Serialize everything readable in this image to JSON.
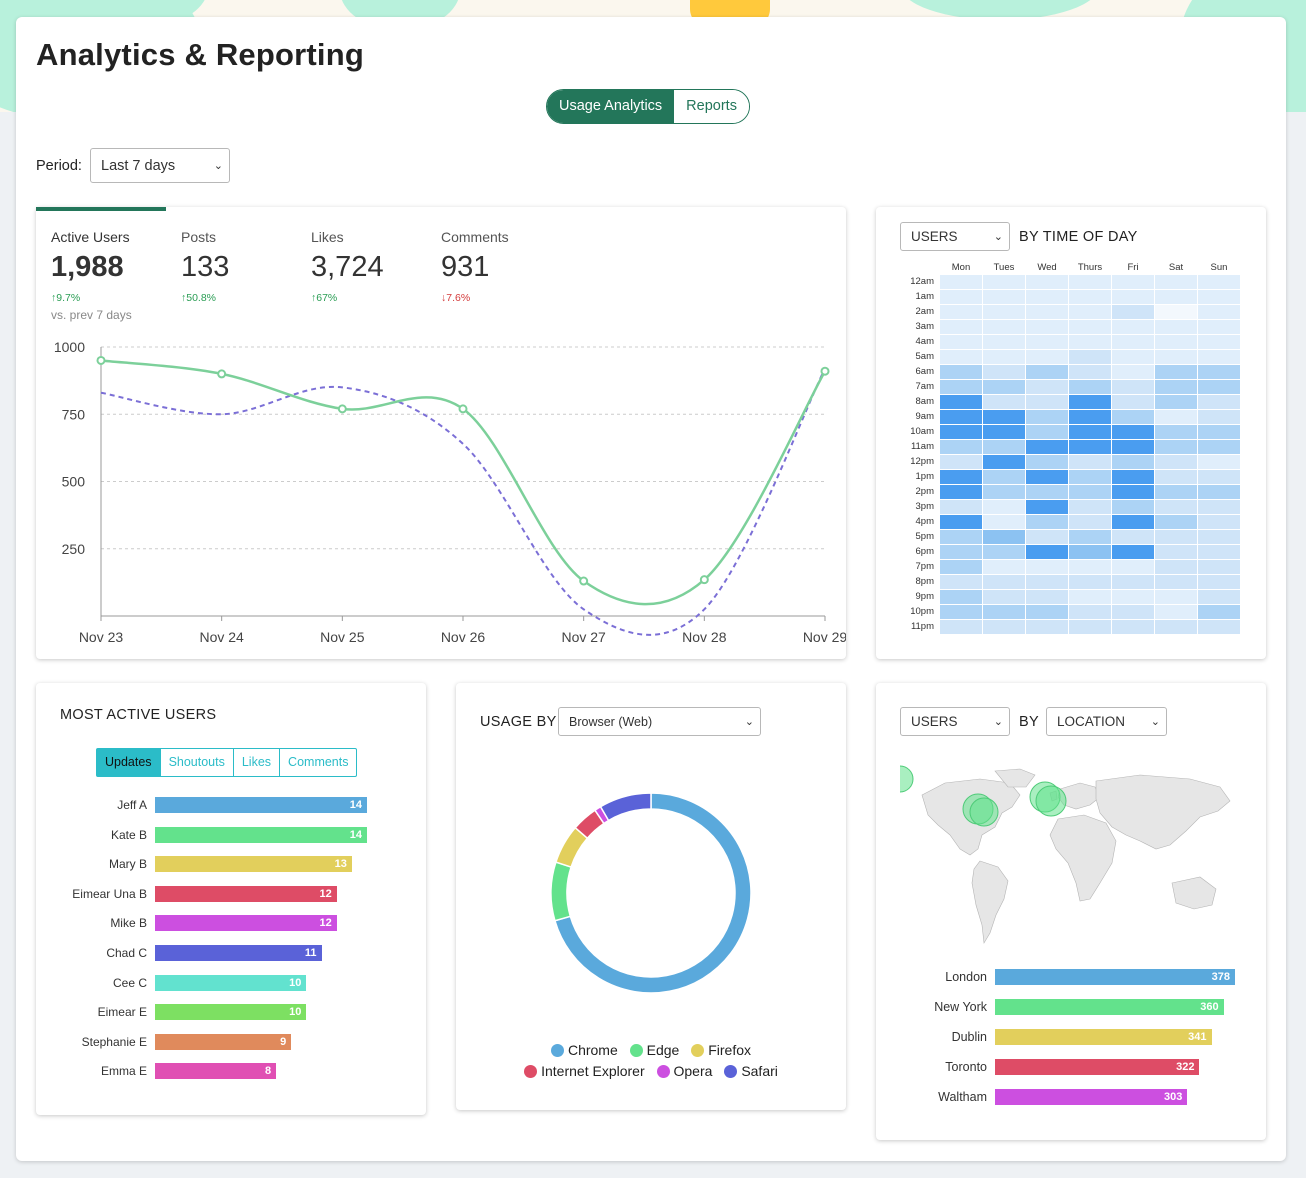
{
  "page": {
    "title": "Analytics & Reporting",
    "tabs": [
      {
        "label": "Usage Analytics",
        "active": true
      },
      {
        "label": "Reports",
        "active": false
      }
    ],
    "period_label": "Period:",
    "period_value": "Last 7 days"
  },
  "colors": {
    "brand_green": "#23765a",
    "teal": "#2bbcc8",
    "up": "#2a9d54",
    "down": "#d43b3b"
  },
  "stats": [
    {
      "label": "Active Users",
      "value": "1,988",
      "change": "↑9.7%",
      "direction": "up",
      "note": "vs. prev 7 days",
      "selected": true
    },
    {
      "label": "Posts",
      "value": "133",
      "change": "↑50.8%",
      "direction": "up"
    },
    {
      "label": "Likes",
      "value": "3,724",
      "change": "↑67%",
      "direction": "up"
    },
    {
      "label": "Comments",
      "value": "931",
      "change": "↓7.6%",
      "direction": "down"
    }
  ],
  "chart_data": [
    {
      "type": "line",
      "x": [
        "Nov 23",
        "Nov 24",
        "Nov 25",
        "Nov 26",
        "Nov 27",
        "Nov 28",
        "Nov 29"
      ],
      "yticks": [
        1000,
        750,
        500,
        250
      ],
      "ylim": [
        0,
        1000
      ],
      "series": [
        {
          "style": "solid",
          "color": "#7cd09a",
          "values": [
            950,
            900,
            770,
            770,
            130,
            135,
            910
          ]
        },
        {
          "style": "dashed",
          "color": "#7b6fd6",
          "values": [
            830,
            750,
            850,
            640,
            25,
            25,
            920
          ]
        }
      ]
    },
    {
      "type": "heatmap",
      "title": "BY TIME OF DAY",
      "columns": [
        "Mon",
        "Tues",
        "Wed",
        "Thurs",
        "Fri",
        "Sat",
        "Sun"
      ],
      "rows": [
        "12am",
        "1am",
        "2am",
        "3am",
        "4am",
        "5am",
        "6am",
        "7am",
        "8am",
        "9am",
        "10am",
        "11am",
        "12pm",
        "1pm",
        "2pm",
        "3pm",
        "4pm",
        "5pm",
        "6pm",
        "7pm",
        "8pm",
        "9pm",
        "10pm",
        "11pm"
      ],
      "values": [
        [
          1,
          1,
          1,
          1,
          1,
          1,
          1
        ],
        [
          1,
          1,
          1,
          1,
          1,
          1,
          1
        ],
        [
          1,
          1,
          1,
          1,
          2,
          0,
          1
        ],
        [
          1,
          1,
          1,
          1,
          1,
          1,
          1
        ],
        [
          1,
          1,
          1,
          1,
          1,
          1,
          1
        ],
        [
          1,
          1,
          1,
          2,
          1,
          1,
          1
        ],
        [
          3,
          2,
          3,
          2,
          1,
          3,
          3
        ],
        [
          3,
          3,
          2,
          3,
          2,
          3,
          3
        ],
        [
          5,
          2,
          2,
          5,
          2,
          3,
          2
        ],
        [
          5,
          5,
          3,
          5,
          3,
          1,
          2
        ],
        [
          5,
          5,
          3,
          5,
          5,
          3,
          3
        ],
        [
          3,
          3,
          5,
          5,
          5,
          3,
          3
        ],
        [
          2,
          5,
          3,
          2,
          3,
          2,
          1
        ],
        [
          5,
          3,
          5,
          3,
          5,
          2,
          2
        ],
        [
          5,
          3,
          3,
          3,
          5,
          3,
          3
        ],
        [
          2,
          1,
          5,
          2,
          3,
          2,
          2
        ],
        [
          5,
          1,
          3,
          2,
          5,
          3,
          2
        ],
        [
          3,
          4,
          2,
          3,
          2,
          2,
          2
        ],
        [
          3,
          3,
          5,
          4,
          5,
          2,
          2
        ],
        [
          3,
          1,
          1,
          1,
          1,
          2,
          2
        ],
        [
          2,
          2,
          2,
          2,
          2,
          2,
          2
        ],
        [
          3,
          2,
          2,
          1,
          1,
          1,
          2
        ],
        [
          3,
          3,
          3,
          2,
          2,
          1,
          3
        ],
        [
          2,
          2,
          2,
          2,
          2,
          2,
          2
        ]
      ]
    },
    {
      "type": "bar",
      "title": "MOST ACTIVE USERS",
      "categories": [
        "Jeff A",
        "Kate B",
        "Mary B",
        "Eimear Una B",
        "Mike B",
        "Chad C",
        "Cee C",
        "Eimear E",
        "Stephanie E",
        "Emma E"
      ],
      "values": [
        14,
        14,
        13,
        12,
        12,
        11,
        10,
        10,
        9,
        8
      ],
      "colors": [
        "#5aa9dc",
        "#63e28c",
        "#e2cf5c",
        "#de4c66",
        "#cc4fe0",
        "#5a62d8",
        "#62e2cf",
        "#7de062",
        "#e08a5c",
        "#e04fb3"
      ]
    },
    {
      "type": "pie",
      "title": "USAGE BY",
      "categories": [
        "Chrome",
        "Edge",
        "Firefox",
        "Internet Explorer",
        "Opera",
        "Safari"
      ],
      "values": [
        67,
        9,
        6,
        4,
        1,
        8
      ],
      "colors": [
        "#5aa9dc",
        "#63e28c",
        "#e2cf5c",
        "#de4c66",
        "#cc4fe0",
        "#5a62d8"
      ]
    },
    {
      "type": "bar",
      "categories": [
        "London",
        "New York",
        "Dublin",
        "Toronto",
        "Waltham"
      ],
      "values": [
        378,
        360,
        341,
        322,
        303
      ],
      "colors": [
        "#5aa9dc",
        "#63e28c",
        "#e2cf5c",
        "#de4c66",
        "#cc4fe0"
      ]
    }
  ],
  "active_users_tabs": [
    {
      "label": "Updates",
      "active": true
    },
    {
      "label": "Shoutouts"
    },
    {
      "label": "Likes"
    },
    {
      "label": "Comments"
    }
  ],
  "time_of_day": {
    "metric_select": "USERS"
  },
  "usage_by": {
    "select": "Browser (Web)"
  },
  "location": {
    "metric_select": "USERS",
    "by_label": "BY",
    "dimension_select": "LOCATION"
  }
}
